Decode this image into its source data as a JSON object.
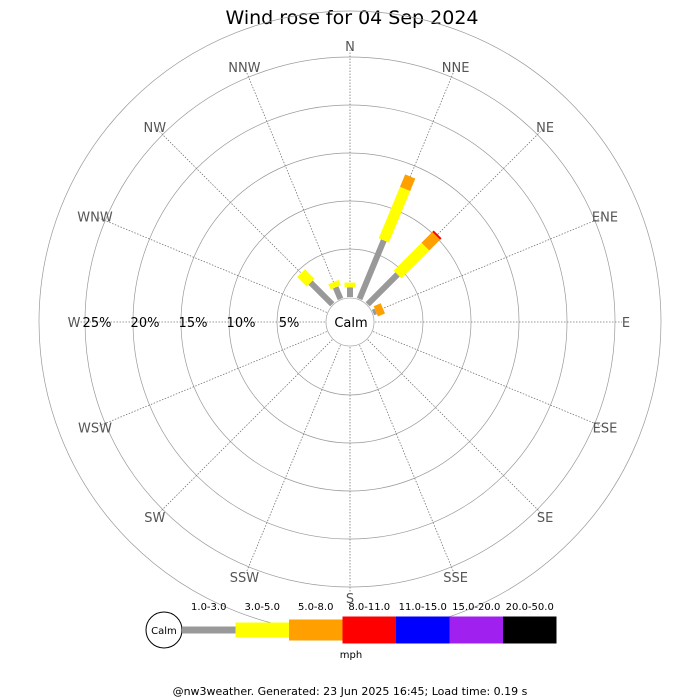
{
  "chart_data": {
    "type": "windrose",
    "title": "Wind rose for 04 Sep 2024",
    "directions": [
      "N",
      "NNE",
      "NE",
      "ENE",
      "E",
      "ESE",
      "SE",
      "SSE",
      "S",
      "SSW",
      "SW",
      "WSW",
      "W",
      "WNW",
      "NW",
      "NNW"
    ],
    "radial_labels": [
      "25%",
      "20%",
      "15%",
      "10%",
      "5%"
    ],
    "radial_ticks": [
      5,
      10,
      15,
      20,
      25
    ],
    "calm_label": "Calm",
    "speed_bins": [
      {
        "label": "1.0-3.0",
        "color": "#999999"
      },
      {
        "label": "3.0-5.0",
        "color": "#ffff00"
      },
      {
        "label": "5.0-8.0",
        "color": "#ff9f00"
      },
      {
        "label": "8.0-11.0",
        "color": "#ff0000"
      },
      {
        "label": "11.0-15.0",
        "color": "#0000ff"
      },
      {
        "label": "15.0-20.0",
        "color": "#a020f0"
      },
      {
        "label": "20.0-50.0",
        "color": "#000000"
      }
    ],
    "speed_unit": "mph",
    "series": [
      {
        "direction": "N",
        "values": [
          1.0,
          0.5,
          0,
          0,
          0,
          0,
          0
        ]
      },
      {
        "direction": "NNE",
        "values": [
          6.6,
          5.8,
          1.4,
          0,
          0,
          0,
          0
        ]
      },
      {
        "direction": "NE",
        "values": [
          4.4,
          4.1,
          1.6,
          0.2,
          0,
          0,
          0
        ]
      },
      {
        "direction": "ENE",
        "values": [
          0.3,
          0,
          0.8,
          0,
          0,
          0,
          0
        ]
      },
      {
        "direction": "NNW",
        "values": [
          1.3,
          0.6,
          0,
          0,
          0,
          0,
          0
        ]
      },
      {
        "direction": "NW",
        "values": [
          3.2,
          1.4,
          0,
          0,
          0,
          0,
          0
        ]
      }
    ]
  },
  "footer": "@nw3weather. Generated: 23 Jun 2025 16:45; Load time: 0.19 s"
}
